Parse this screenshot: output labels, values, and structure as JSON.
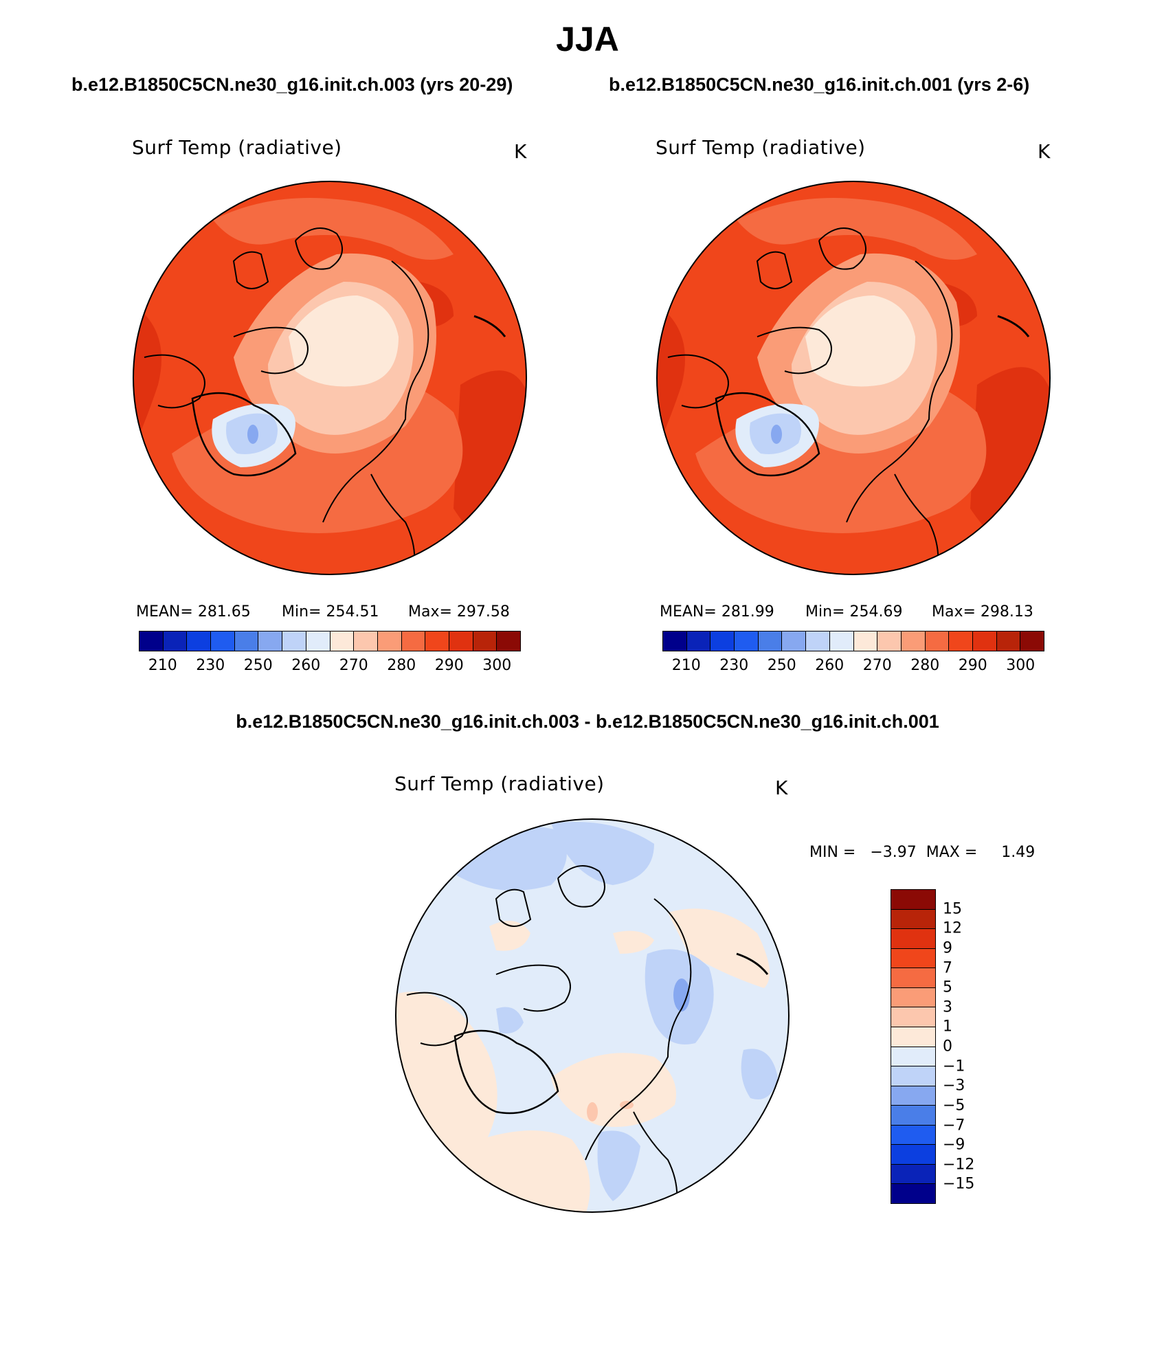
{
  "title": "JJA",
  "panels": [
    {
      "case_label": "b.e12.B1850C5CN.ne30_g16.init.ch.003 (yrs 20-29)",
      "variable": "Surf Temp (radiative)",
      "units": "K",
      "stats": {
        "mean": "MEAN= 281.65",
        "min": "Min= 254.51",
        "max": "Max= 297.58"
      }
    },
    {
      "case_label": "b.e12.B1850C5CN.ne30_g16.init.ch.001 (yrs 2-6)",
      "variable": "Surf Temp (radiative)",
      "units": "K",
      "stats": {
        "mean": "MEAN= 281.99",
        "min": "Min= 254.69",
        "max": "Max= 298.13"
      }
    }
  ],
  "diff_panel": {
    "title": "b.e12.B1850C5CN.ne30_g16.init.ch.003 - b.e12.B1850C5CN.ne30_g16.init.ch.001",
    "variable": "Surf Temp (radiative)",
    "units": "K",
    "minmax": "MIN =   −3.97  MAX =     1.49"
  },
  "chart_data": [
    {
      "type": "heatmap",
      "projection": "north polar stereographic",
      "title": "Surf Temp (radiative)",
      "units": "K",
      "mean": 281.65,
      "min": 254.51,
      "max": 297.58,
      "colorbar_ticks": [
        "210",
        "230",
        "250",
        "260",
        "270",
        "280",
        "290",
        "300"
      ],
      "colorbar_colors": [
        "#00008b",
        "#0a23b8",
        "#0c3fe0",
        "#1f5cf0",
        "#4a7ee8",
        "#87a8f0",
        "#bfd3f8",
        "#e1ecfa",
        "#fde9d9",
        "#fcc7ae",
        "#fa9c77",
        "#f56b42",
        "#f0461b",
        "#e03210",
        "#b82409",
        "#8b0a05"
      ]
    },
    {
      "type": "heatmap",
      "projection": "north polar stereographic",
      "title": "Surf Temp (radiative)",
      "units": "K",
      "mean": 281.99,
      "min": 254.69,
      "max": 298.13,
      "colorbar_ticks": [
        "210",
        "230",
        "250",
        "260",
        "270",
        "280",
        "290",
        "300"
      ],
      "colorbar_colors": [
        "#00008b",
        "#0a23b8",
        "#0c3fe0",
        "#1f5cf0",
        "#4a7ee8",
        "#87a8f0",
        "#bfd3f8",
        "#e1ecfa",
        "#fde9d9",
        "#fcc7ae",
        "#fa9c77",
        "#f56b42",
        "#f0461b",
        "#e03210",
        "#b82409",
        "#8b0a05"
      ]
    },
    {
      "type": "heatmap",
      "projection": "north polar stereographic",
      "title": "Surf Temp (radiative)",
      "units": "K",
      "min": -3.97,
      "max": 1.49,
      "colorbar_ticks": [
        "15",
        "12",
        "9",
        "7",
        "5",
        "3",
        "1",
        "0",
        "−1",
        "−3",
        "−5",
        "−7",
        "−9",
        "−12",
        "−15"
      ],
      "colorbar_colors": [
        "#8b0a05",
        "#b82409",
        "#e03210",
        "#f0461b",
        "#f56b42",
        "#fa9c77",
        "#fcc7ae",
        "#fde9d9",
        "#e1ecfa",
        "#bfd3f8",
        "#87a8f0",
        "#4a7ee8",
        "#1f5cf0",
        "#0c3fe0",
        "#0a23b8",
        "#00008b"
      ]
    }
  ]
}
